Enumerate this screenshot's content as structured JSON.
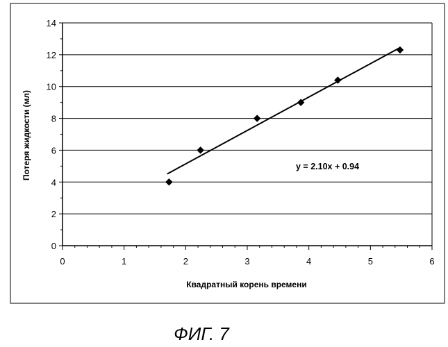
{
  "chart_data": {
    "type": "scatter",
    "title": "",
    "xlabel": "Квадратный корень времени",
    "ylabel": "Потеря жидкости (мл)",
    "xlim": [
      0,
      6
    ],
    "ylim": [
      0,
      14
    ],
    "x_ticks": [
      "0",
      "1",
      "2",
      "3",
      "4",
      "5",
      "6"
    ],
    "y_ticks": [
      "0",
      "2",
      "4",
      "6",
      "8",
      "10",
      "12",
      "14"
    ],
    "grid": "horizontal",
    "legend": "none",
    "series": [
      {
        "x": [
          1.73,
          2.24,
          3.16,
          3.87,
          4.47,
          5.48
        ],
        "y": [
          4.0,
          6.0,
          8.0,
          9.0,
          10.4,
          12.3
        ],
        "marker": "diamond",
        "color": "#000000"
      }
    ],
    "trendline": {
      "slope": 2.1,
      "intercept": 0.94,
      "x_range": [
        1.7,
        5.48
      ],
      "equation": "y = 2.10x + 0.94"
    }
  },
  "figure_caption": "ФИГ. 7"
}
